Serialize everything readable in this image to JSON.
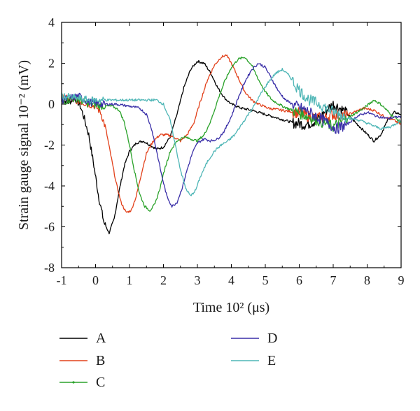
{
  "chart_data": {
    "type": "line",
    "xlabel": "Time 10² (μs)",
    "ylabel": "Strain gauge signal 10⁻² (mV)",
    "xlim": [
      -1,
      9
    ],
    "ylim": [
      -8,
      4
    ],
    "xticks": [
      "-1",
      "0",
      "1",
      "2",
      "3",
      "4",
      "5",
      "6",
      "7",
      "8",
      "9"
    ],
    "yticks": [
      "-8",
      "-6",
      "-4",
      "-2",
      "0",
      "2",
      "4"
    ],
    "grid": false,
    "legend_position": "bottom",
    "series": [
      {
        "name": "A",
        "color": "#000000",
        "points": [
          [
            -1,
            0.2
          ],
          [
            -0.8,
            0.1
          ],
          [
            -0.6,
            0.3
          ],
          [
            -0.45,
            -0.1
          ],
          [
            -0.35,
            -0.6
          ],
          [
            -0.2,
            -1.5
          ],
          [
            -0.05,
            -3.0
          ],
          [
            0.1,
            -4.6
          ],
          [
            0.25,
            -5.8
          ],
          [
            0.4,
            -6.3
          ],
          [
            0.55,
            -5.6
          ],
          [
            0.7,
            -4.2
          ],
          [
            0.85,
            -3.0
          ],
          [
            1.0,
            -2.3
          ],
          [
            1.2,
            -1.9
          ],
          [
            1.4,
            -1.8
          ],
          [
            1.6,
            -2.0
          ],
          [
            1.8,
            -2.2
          ],
          [
            2.0,
            -2.1
          ],
          [
            2.2,
            -1.6
          ],
          [
            2.4,
            -0.5
          ],
          [
            2.6,
            0.8
          ],
          [
            2.8,
            1.7
          ],
          [
            3.0,
            2.1
          ],
          [
            3.2,
            2.0
          ],
          [
            3.4,
            1.5
          ],
          [
            3.6,
            0.8
          ],
          [
            3.8,
            0.3
          ],
          [
            4.0,
            0.0
          ],
          [
            4.3,
            -0.2
          ],
          [
            4.6,
            -0.3
          ],
          [
            5.0,
            -0.5
          ],
          [
            5.4,
            -0.7
          ],
          [
            5.8,
            -0.9
          ],
          [
            6.2,
            -1.0
          ],
          [
            6.5,
            -0.8
          ],
          [
            6.8,
            -0.3
          ],
          [
            7.0,
            0.0
          ],
          [
            7.3,
            -0.3
          ],
          [
            7.6,
            -0.8
          ],
          [
            7.9,
            -1.3
          ],
          [
            8.2,
            -1.8
          ],
          [
            8.4,
            -1.5
          ],
          [
            8.6,
            -0.8
          ],
          [
            8.8,
            -0.4
          ],
          [
            9.0,
            -0.5
          ]
        ]
      },
      {
        "name": "B",
        "color": "#e2401a",
        "points": [
          [
            -1,
            0.3
          ],
          [
            -0.6,
            0.2
          ],
          [
            -0.2,
            0.0
          ],
          [
            0.0,
            -0.1
          ],
          [
            0.15,
            -0.4
          ],
          [
            0.3,
            -1.2
          ],
          [
            0.45,
            -2.5
          ],
          [
            0.6,
            -3.8
          ],
          [
            0.75,
            -4.8
          ],
          [
            0.9,
            -5.3
          ],
          [
            1.05,
            -5.2
          ],
          [
            1.2,
            -4.5
          ],
          [
            1.35,
            -3.4
          ],
          [
            1.5,
            -2.4
          ],
          [
            1.7,
            -1.8
          ],
          [
            1.9,
            -1.5
          ],
          [
            2.1,
            -1.5
          ],
          [
            2.3,
            -1.6
          ],
          [
            2.5,
            -1.8
          ],
          [
            2.7,
            -1.5
          ],
          [
            2.9,
            -0.9
          ],
          [
            3.1,
            0.2
          ],
          [
            3.3,
            1.2
          ],
          [
            3.5,
            1.9
          ],
          [
            3.7,
            2.3
          ],
          [
            3.85,
            2.4
          ],
          [
            4.0,
            2.0
          ],
          [
            4.2,
            1.3
          ],
          [
            4.4,
            0.6
          ],
          [
            4.6,
            0.2
          ],
          [
            4.8,
            0.0
          ],
          [
            5.1,
            -0.2
          ],
          [
            5.5,
            -0.3
          ],
          [
            5.9,
            -0.4
          ],
          [
            6.3,
            -0.6
          ],
          [
            6.7,
            -0.7
          ],
          [
            7.0,
            -0.5
          ],
          [
            7.3,
            -0.6
          ],
          [
            7.6,
            -0.4
          ],
          [
            7.9,
            -0.2
          ],
          [
            8.2,
            -0.3
          ],
          [
            8.5,
            -0.6
          ],
          [
            8.8,
            -0.8
          ],
          [
            9.0,
            -1.0
          ]
        ]
      },
      {
        "name": "C",
        "color": "#2aa22a",
        "points": [
          [
            -1,
            0.1
          ],
          [
            -0.6,
            0.3
          ],
          [
            -0.2,
            0.0
          ],
          [
            0.2,
            -0.1
          ],
          [
            0.5,
            -0.1
          ],
          [
            0.7,
            -0.3
          ],
          [
            0.85,
            -0.9
          ],
          [
            1.0,
            -2.0
          ],
          [
            1.15,
            -3.3
          ],
          [
            1.3,
            -4.4
          ],
          [
            1.45,
            -5.0
          ],
          [
            1.6,
            -5.2
          ],
          [
            1.75,
            -4.9
          ],
          [
            1.9,
            -4.1
          ],
          [
            2.05,
            -3.1
          ],
          [
            2.2,
            -2.3
          ],
          [
            2.4,
            -1.8
          ],
          [
            2.6,
            -1.6
          ],
          [
            2.8,
            -1.7
          ],
          [
            3.0,
            -1.8
          ],
          [
            3.2,
            -1.5
          ],
          [
            3.4,
            -0.8
          ],
          [
            3.6,
            0.2
          ],
          [
            3.8,
            1.1
          ],
          [
            4.0,
            1.8
          ],
          [
            4.2,
            2.2
          ],
          [
            4.4,
            2.3
          ],
          [
            4.6,
            1.9
          ],
          [
            4.8,
            1.2
          ],
          [
            5.0,
            0.6
          ],
          [
            5.2,
            0.2
          ],
          [
            5.5,
            -0.1
          ],
          [
            5.8,
            -0.3
          ],
          [
            6.1,
            -0.5
          ],
          [
            6.4,
            -0.7
          ],
          [
            6.7,
            -0.9
          ],
          [
            7.0,
            -1.1
          ],
          [
            7.3,
            -0.8
          ],
          [
            7.6,
            -0.5
          ],
          [
            7.9,
            -0.2
          ],
          [
            8.2,
            0.2
          ],
          [
            8.4,
            0.0
          ],
          [
            8.7,
            -0.5
          ],
          [
            9.0,
            -0.9
          ]
        ]
      },
      {
        "name": "D",
        "color": "#3a2fa8",
        "points": [
          [
            -1,
            0.2
          ],
          [
            -0.5,
            0.4
          ],
          [
            -0.2,
            0.1
          ],
          [
            0.2,
            0.0
          ],
          [
            0.6,
            0.0
          ],
          [
            1.0,
            -0.1
          ],
          [
            1.3,
            -0.2
          ],
          [
            1.5,
            -0.5
          ],
          [
            1.65,
            -1.2
          ],
          [
            1.8,
            -2.3
          ],
          [
            1.95,
            -3.5
          ],
          [
            2.1,
            -4.5
          ],
          [
            2.25,
            -5.0
          ],
          [
            2.4,
            -4.8
          ],
          [
            2.55,
            -4.1
          ],
          [
            2.7,
            -3.2
          ],
          [
            2.85,
            -2.4
          ],
          [
            3.0,
            -1.9
          ],
          [
            3.2,
            -1.7
          ],
          [
            3.4,
            -1.8
          ],
          [
            3.6,
            -1.7
          ],
          [
            3.8,
            -1.3
          ],
          [
            4.0,
            -0.6
          ],
          [
            4.2,
            0.3
          ],
          [
            4.4,
            1.1
          ],
          [
            4.6,
            1.7
          ],
          [
            4.8,
            2.0
          ],
          [
            5.0,
            1.8
          ],
          [
            5.2,
            1.2
          ],
          [
            5.4,
            0.6
          ],
          [
            5.6,
            0.2
          ],
          [
            5.9,
            -0.1
          ],
          [
            6.2,
            -0.3
          ],
          [
            6.5,
            -0.6
          ],
          [
            6.8,
            -0.9
          ],
          [
            7.1,
            -1.2
          ],
          [
            7.4,
            -1.0
          ],
          [
            7.7,
            -0.6
          ],
          [
            8.0,
            -0.4
          ],
          [
            8.3,
            -0.6
          ],
          [
            8.6,
            -0.7
          ],
          [
            9.0,
            -0.6
          ]
        ]
      },
      {
        "name": "E",
        "color": "#4fb6b6",
        "points": [
          [
            -1,
            0.4
          ],
          [
            -0.6,
            0.3
          ],
          [
            -0.2,
            0.2
          ],
          [
            0.2,
            0.2
          ],
          [
            0.6,
            0.2
          ],
          [
            1.0,
            0.2
          ],
          [
            1.4,
            0.2
          ],
          [
            1.8,
            0.2
          ],
          [
            2.0,
            0.0
          ],
          [
            2.2,
            -0.8
          ],
          [
            2.35,
            -2.0
          ],
          [
            2.5,
            -3.2
          ],
          [
            2.65,
            -4.1
          ],
          [
            2.8,
            -4.5
          ],
          [
            2.95,
            -4.2
          ],
          [
            3.1,
            -3.5
          ],
          [
            3.3,
            -2.8
          ],
          [
            3.5,
            -2.3
          ],
          [
            3.7,
            -2.0
          ],
          [
            3.9,
            -1.8
          ],
          [
            4.1,
            -1.5
          ],
          [
            4.3,
            -1.0
          ],
          [
            4.5,
            -0.5
          ],
          [
            4.7,
            0.0
          ],
          [
            4.9,
            0.6
          ],
          [
            5.1,
            1.1
          ],
          [
            5.3,
            1.5
          ],
          [
            5.5,
            1.7
          ],
          [
            5.7,
            1.4
          ],
          [
            5.9,
            0.9
          ],
          [
            6.1,
            0.5
          ],
          [
            6.3,
            0.2
          ],
          [
            6.6,
            0.0
          ],
          [
            6.9,
            -0.3
          ],
          [
            7.2,
            -0.5
          ],
          [
            7.5,
            -0.7
          ],
          [
            7.8,
            -0.8
          ],
          [
            8.1,
            -1.0
          ],
          [
            8.4,
            -1.2
          ],
          [
            8.7,
            -1.1
          ],
          [
            9.0,
            -0.8
          ]
        ]
      }
    ]
  }
}
